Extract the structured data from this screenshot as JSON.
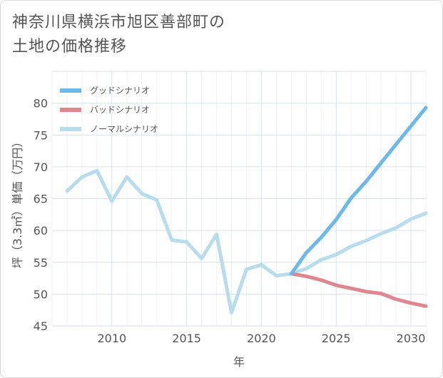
{
  "title_lines": [
    "神奈川県横浜市旭区善部町の",
    "土地の価格推移"
  ],
  "chart_data": {
    "type": "line",
    "xlabel": "年",
    "ylabel": "坪（3.3㎡）単価（万円）",
    "xlim": [
      2006,
      2031
    ],
    "ylim": [
      45,
      85
    ],
    "x_ticks": [
      2010,
      2015,
      2020,
      2025,
      2030
    ],
    "y_ticks": [
      45,
      50,
      55,
      60,
      65,
      70,
      75,
      80
    ],
    "grid": true,
    "legend_position": "top-left",
    "series": [
      {
        "name": "グッドシナリオ",
        "color": "#6cb8ea",
        "x": [
          2022,
          2023,
          2024,
          2025,
          2026,
          2027,
          2028,
          2029,
          2030,
          2031
        ],
        "values": [
          53.2,
          56.5,
          58.9,
          61.7,
          65.1,
          67.7,
          70.6,
          73.5,
          76.4,
          79.3
        ]
      },
      {
        "name": "バッドシナリオ",
        "color": "#e0868e",
        "x": [
          2022,
          2023,
          2024,
          2025,
          2026,
          2027,
          2028,
          2029,
          2030,
          2031
        ],
        "values": [
          53.2,
          52.8,
          52.2,
          51.4,
          50.9,
          50.4,
          50.1,
          49.2,
          48.6,
          48.1
        ]
      },
      {
        "name": "ノーマルシナリオ",
        "color": "#b6dcee",
        "x": [
          2007,
          2008,
          2009,
          2010,
          2011,
          2012,
          2013,
          2014,
          2015,
          2016,
          2017,
          2018,
          2019,
          2020,
          2021,
          2022,
          2023,
          2024,
          2025,
          2026,
          2027,
          2028,
          2029,
          2030,
          2031
        ],
        "values": [
          66.2,
          68.4,
          69.4,
          64.6,
          68.4,
          65.8,
          64.8,
          58.5,
          58.2,
          55.6,
          59.4,
          47.1,
          53.9,
          54.6,
          52.9,
          53.2,
          54.0,
          55.4,
          56.2,
          57.5,
          58.4,
          59.5,
          60.4,
          61.8,
          62.7
        ]
      }
    ]
  }
}
